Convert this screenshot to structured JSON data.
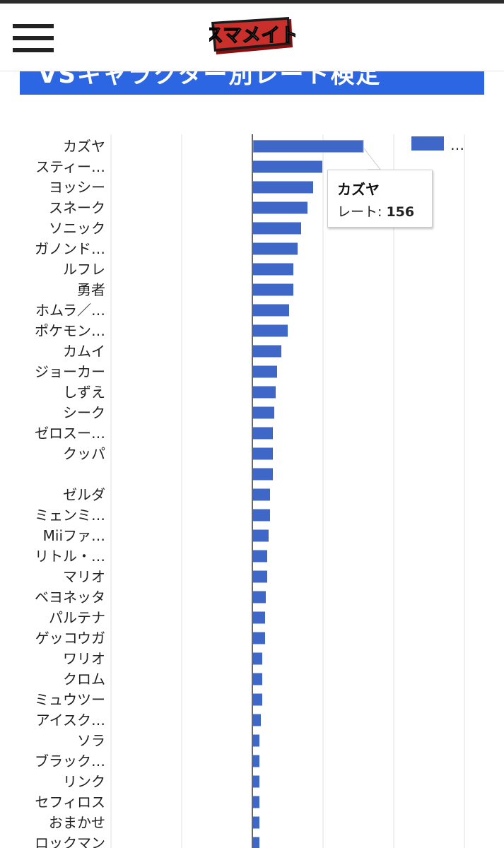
{
  "header": {
    "menu_icon": "hamburger-menu-icon",
    "logo_text": "スマメイト"
  },
  "banner": {
    "title": "VSキャラクター別レート検定"
  },
  "colors": {
    "bar": "#3f67c8",
    "banner": "#2d66e3",
    "grid": "#e0e0e0",
    "baseline": "#333333"
  },
  "chart_data": {
    "type": "bar",
    "orientation": "horizontal",
    "categories": [
      "カズヤ",
      "スティー…",
      "ヨッシー",
      "スネーク",
      "ソニック",
      "ガノンド…",
      "ルフレ",
      "勇者",
      "ホムラ／…",
      "ポケモン…",
      "カムイ",
      "ジョーカー",
      "しずえ",
      "シーク",
      "ゼロスー…",
      "クッパ",
      "",
      "ゼルダ",
      "ミェンミ…",
      "Miiファ…",
      "リトル・…",
      "マリオ",
      "ベヨネッタ",
      "パルテナ",
      "ゲッコウガ",
      "ワリオ",
      "クロム",
      "ミュウツー",
      "アイスク…",
      "ソラ",
      "ブラック…",
      "リンク",
      "セフィロス",
      "おまかせ",
      "ロックマン"
    ],
    "series": [
      {
        "name": "…",
        "values": [
          156,
          98,
          85,
          77,
          68,
          63,
          57,
          57,
          51,
          49,
          40,
          34,
          32,
          30,
          28,
          28,
          28,
          24,
          24,
          22,
          20,
          20,
          18,
          17,
          17,
          13,
          13,
          13,
          11,
          9,
          9,
          9,
          9,
          9,
          9
        ]
      }
    ],
    "tooltip": {
      "category": "カズヤ",
      "label": "レート: ",
      "value": "156"
    },
    "legend_position": "top-right",
    "xlim": [
      -200,
      400
    ],
    "grid": true
  }
}
